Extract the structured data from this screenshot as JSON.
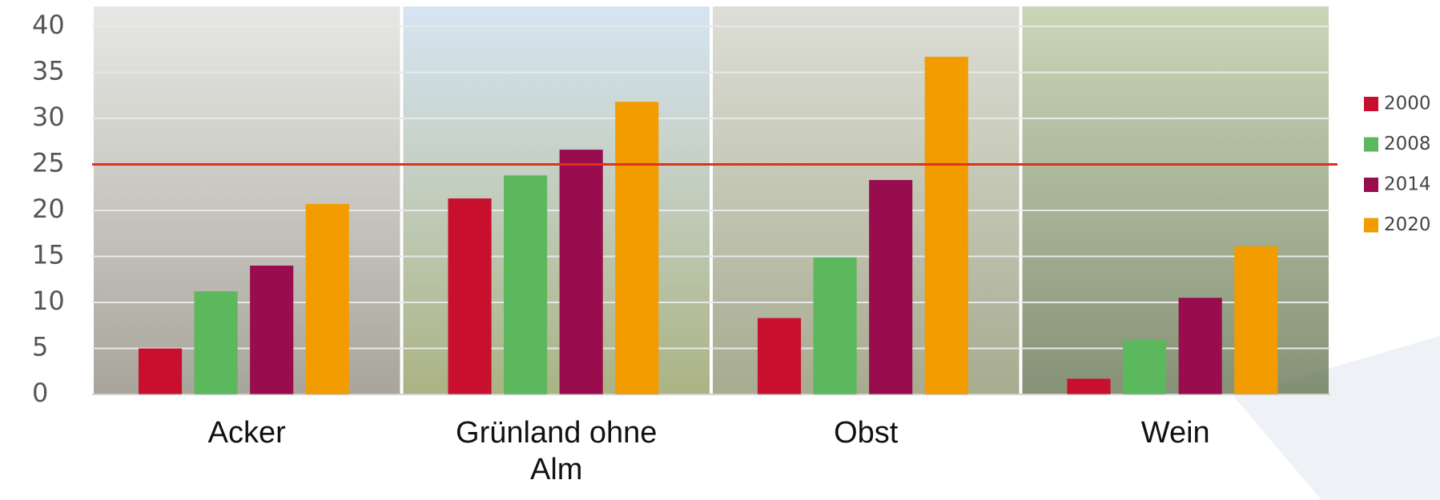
{
  "chart_data": {
    "type": "bar",
    "categories": [
      "Acker",
      "Grünland ohne Alm",
      "Obst",
      "Wein"
    ],
    "series": [
      {
        "name": "2000",
        "color": "#c8102e",
        "values": [
          5.0,
          21.3,
          8.3,
          1.7
        ]
      },
      {
        "name": "2008",
        "color": "#5cb85c",
        "values": [
          11.2,
          23.8,
          14.9,
          5.9
        ]
      },
      {
        "name": "2014",
        "color": "#990d4e",
        "values": [
          14.0,
          26.6,
          23.3,
          10.5
        ]
      },
      {
        "name": "2020",
        "color": "#f39c00",
        "values": [
          20.7,
          31.8,
          36.7,
          16.1
        ]
      }
    ],
    "ylim": [
      0,
      40
    ],
    "yticks": [
      0,
      5,
      10,
      15,
      20,
      25,
      30,
      35,
      40
    ],
    "grid": true,
    "hline": {
      "value": 25,
      "color": "#e0301e"
    },
    "legend": "right"
  }
}
